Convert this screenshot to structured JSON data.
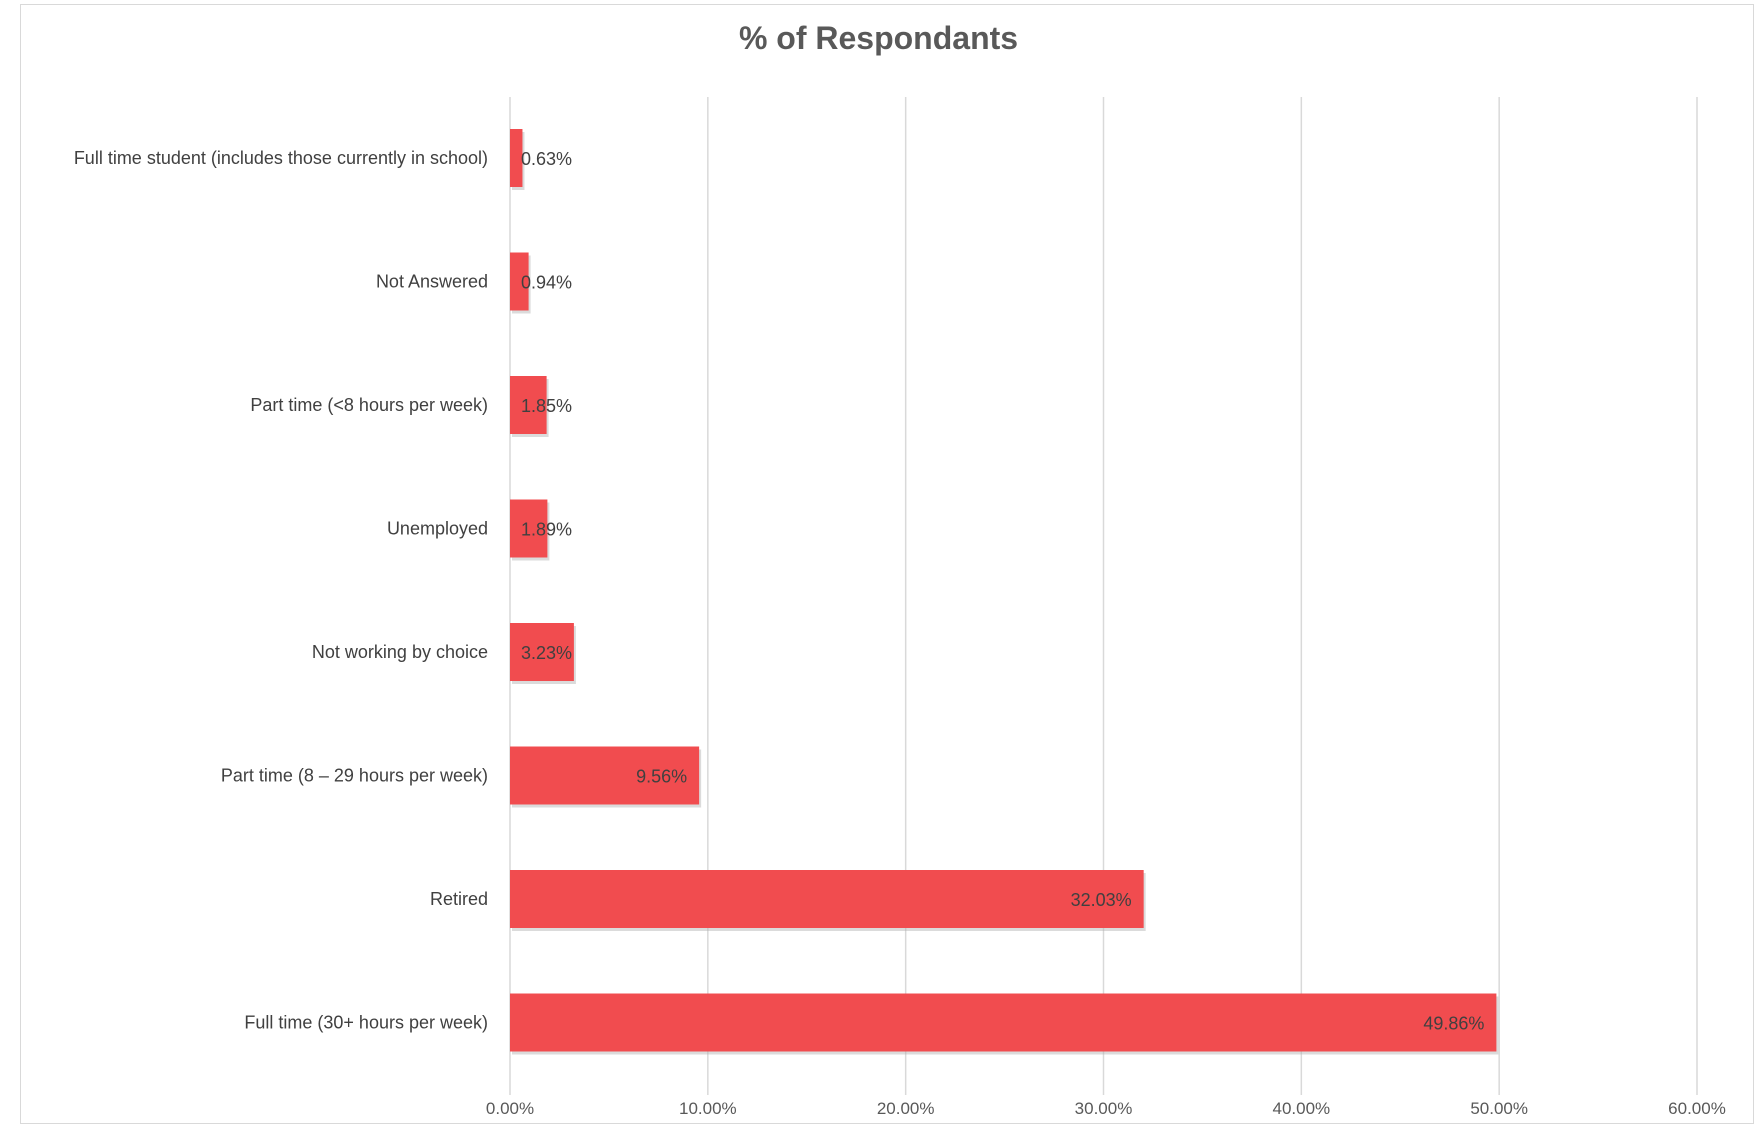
{
  "chart_data": {
    "type": "bar",
    "orientation": "horizontal",
    "title": "% of Respondants",
    "xlabel": "",
    "ylabel": "",
    "categories": [
      "Full time student (includes those currently in school)",
      "Not Answered",
      "Part time (<8 hours per week)",
      "Unemployed",
      "Not working by choice",
      "Part time (8 – 29 hours per week)",
      "Retired",
      "Full time (30+ hours per week)"
    ],
    "values": [
      0.63,
      0.94,
      1.85,
      1.89,
      3.23,
      9.56,
      32.03,
      49.86
    ],
    "data_labels": [
      "0.63%",
      "0.94%",
      "1.85%",
      "1.89%",
      "3.23%",
      "9.56%",
      "32.03%",
      "49.86%"
    ],
    "xlim": [
      0,
      60
    ],
    "x_ticks": [
      0,
      10,
      20,
      30,
      40,
      50,
      60
    ],
    "x_tick_labels": [
      "0.00%",
      "10.00%",
      "20.00%",
      "30.00%",
      "40.00%",
      "50.00%",
      "60.00%"
    ],
    "grid": true,
    "legend": "none",
    "bar_color": "#f14c4f",
    "grid_color": "#d9d9d9"
  }
}
